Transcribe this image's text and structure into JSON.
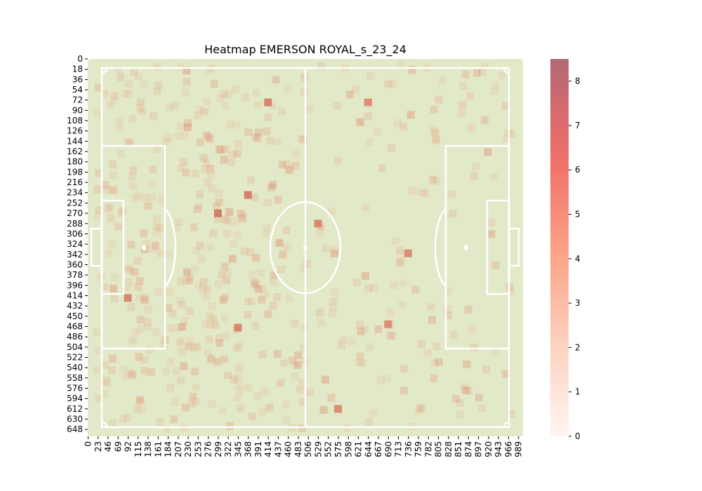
{
  "chart_data": {
    "type": "heatmap",
    "title": "Heatmap EMERSON ROYAL_s_23_24",
    "xlabel": "",
    "ylabel": "",
    "x_ticks": [
      "0",
      "23",
      "46",
      "69",
      "92",
      "115",
      "138",
      "161",
      "184",
      "207",
      "230",
      "253",
      "276",
      "299",
      "322",
      "345",
      "368",
      "391",
      "414",
      "437",
      "460",
      "483",
      "506",
      "529",
      "552",
      "575",
      "598",
      "621",
      "644",
      "667",
      "690",
      "713",
      "736",
      "759",
      "782",
      "805",
      "828",
      "851",
      "874",
      "897",
      "920",
      "943",
      "966",
      "989"
    ],
    "y_ticks": [
      "0",
      "18",
      "36",
      "54",
      "72",
      "90",
      "108",
      "126",
      "144",
      "162",
      "180",
      "198",
      "216",
      "234",
      "252",
      "270",
      "288",
      "306",
      "324",
      "342",
      "360",
      "378",
      "396",
      "414",
      "432",
      "450",
      "468",
      "486",
      "504",
      "522",
      "540",
      "558",
      "576",
      "594",
      "612",
      "630",
      "648"
    ],
    "x_range": [
      0,
      1000
    ],
    "y_range": [
      0,
      660
    ],
    "colorbar": {
      "ticks": [
        "0",
        "1",
        "2",
        "3",
        "4",
        "5",
        "6",
        "7",
        "8"
      ],
      "min": 0,
      "max": 8.5
    },
    "pitch_color": "#e2e9c8",
    "line_color": "#ffffff",
    "cmap": [
      "#fff5f0",
      "#fcbba1",
      "#fb6a4a",
      "#b06a72"
    ],
    "notable_cells": [
      {
        "x": 299,
        "y": 270,
        "value": 4.5
      },
      {
        "x": 368,
        "y": 238,
        "value": 4.2
      },
      {
        "x": 414,
        "y": 76,
        "value": 3.8
      },
      {
        "x": 345,
        "y": 470,
        "value": 3.5
      },
      {
        "x": 92,
        "y": 418,
        "value": 3.5
      },
      {
        "x": 736,
        "y": 340,
        "value": 3.0
      },
      {
        "x": 529,
        "y": 288,
        "value": 3.2
      },
      {
        "x": 575,
        "y": 612,
        "value": 3.0
      },
      {
        "x": 644,
        "y": 76,
        "value": 3.0
      },
      {
        "x": 690,
        "y": 464,
        "value": 2.8
      }
    ]
  }
}
